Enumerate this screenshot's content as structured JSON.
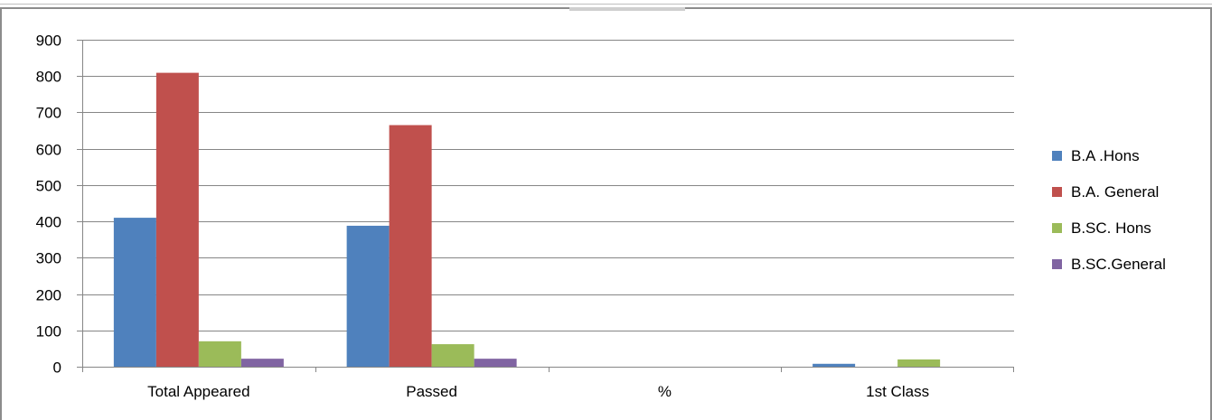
{
  "chart_data": {
    "type": "bar",
    "categories": [
      "Total Appeared",
      "Passed",
      "%",
      "1st Class"
    ],
    "series": [
      {
        "name": "B.A .Hons",
        "color": "#4F81BD",
        "values": [
          410,
          388,
          0,
          8
        ]
      },
      {
        "name": "B.A. General",
        "color": "#C0504D",
        "values": [
          809,
          665,
          0,
          0
        ]
      },
      {
        "name": "B.SC. Hons",
        "color": "#9BBB59",
        "values": [
          70,
          62,
          0,
          20
        ]
      },
      {
        "name": "B.SC.General",
        "color": "#8064A2",
        "values": [
          22,
          22,
          0,
          0
        ]
      }
    ],
    "ylim": [
      0,
      900
    ],
    "yticks": [
      0,
      100,
      200,
      300,
      400,
      500,
      600,
      700,
      800,
      900
    ],
    "grid": true,
    "legend_position": "right"
  }
}
